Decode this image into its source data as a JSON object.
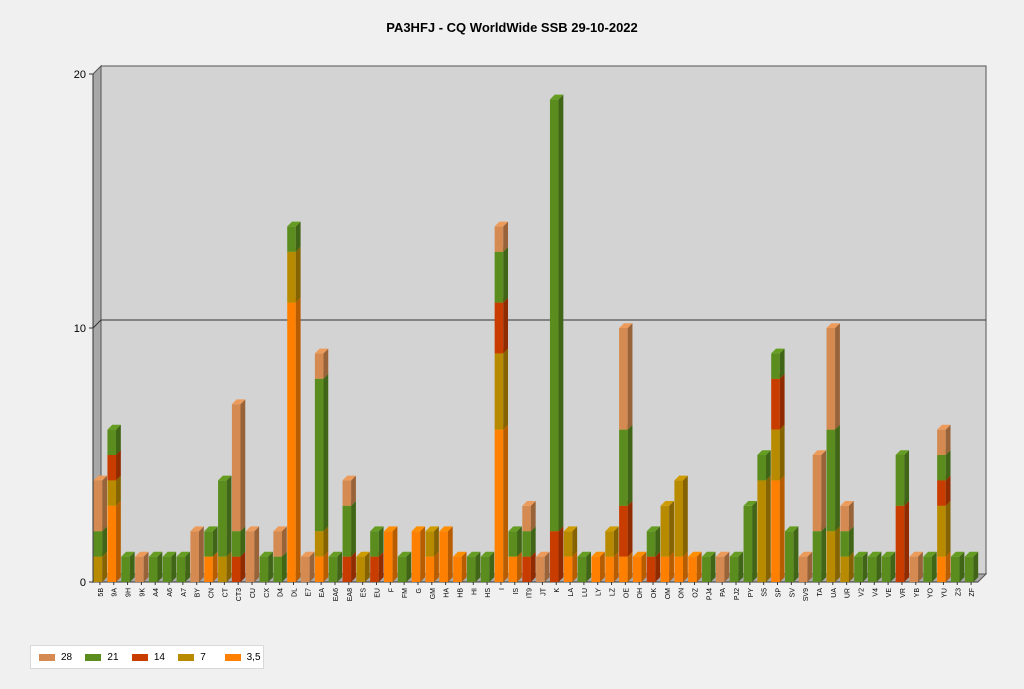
{
  "chart_data": {
    "type": "bar",
    "stacked": true,
    "three_d": true,
    "title": "PA3HFJ - CQ WorldWide SSB 29-10-2022",
    "xlabel": "",
    "ylabel": "",
    "ylim": [
      0,
      20
    ],
    "yticks": [
      "0",
      "10",
      "20"
    ],
    "grid": "horizontal at 10",
    "legend_position": "bottom-left",
    "categories": [
      "5B",
      "9A",
      "9H",
      "9K",
      "A4",
      "A6",
      "A7",
      "BY",
      "CN",
      "CT",
      "CT3",
      "CU",
      "CX",
      "D4",
      "DL",
      "E7",
      "EA",
      "EA6",
      "EA8",
      "ES",
      "EU",
      "F",
      "FM",
      "G",
      "GM",
      "HA",
      "HB",
      "HI",
      "HS",
      "I",
      "IS",
      "IT9",
      "JT",
      "K",
      "LA",
      "LU",
      "LY",
      "LZ",
      "OE",
      "OH",
      "OK",
      "OM",
      "ON",
      "OZ",
      "PJ4",
      "PA",
      "PJ2",
      "PY",
      "S5",
      "SP",
      "SV",
      "SV9",
      "TA",
      "UA",
      "UR",
      "V2",
      "V4",
      "VE",
      "VR",
      "YB",
      "YO",
      "YU",
      "Z3",
      "ZF"
    ],
    "series": [
      {
        "name": "3,5",
        "color": "#ff8000",
        "values": [
          0,
          3,
          0,
          0,
          0,
          0,
          0,
          0,
          1,
          0,
          0,
          0,
          0,
          0,
          11,
          0,
          1,
          0,
          0,
          0,
          0,
          2,
          0,
          2,
          1,
          2,
          1,
          0,
          0,
          6,
          1,
          0,
          0,
          0,
          1,
          0,
          1,
          1,
          1,
          1,
          0,
          1,
          1,
          1,
          0,
          0,
          0,
          0,
          0,
          4,
          0,
          0,
          0,
          0,
          0,
          0,
          0,
          0,
          0,
          0,
          0,
          1,
          0,
          0
        ]
      },
      {
        "name": "7",
        "color": "#b88a00",
        "values": [
          1,
          1,
          0,
          0,
          0,
          0,
          0,
          0,
          0,
          1,
          0,
          0,
          0,
          0,
          2,
          0,
          1,
          0,
          0,
          1,
          0,
          0,
          0,
          0,
          1,
          0,
          0,
          0,
          0,
          3,
          0,
          0,
          0,
          0,
          1,
          0,
          0,
          1,
          0,
          0,
          0,
          2,
          3,
          0,
          0,
          0,
          0,
          0,
          4,
          2,
          0,
          0,
          0,
          2,
          1,
          0,
          0,
          0,
          0,
          0,
          0,
          2,
          0,
          0
        ]
      },
      {
        "name": "14",
        "color": "#c83c00",
        "values": [
          0,
          1,
          0,
          0,
          0,
          0,
          0,
          0,
          0,
          0,
          1,
          0,
          0,
          0,
          0,
          0,
          0,
          0,
          1,
          0,
          1,
          0,
          0,
          0,
          0,
          0,
          0,
          0,
          0,
          2,
          0,
          1,
          0,
          2,
          0,
          0,
          0,
          0,
          2,
          0,
          1,
          0,
          0,
          0,
          0,
          0,
          0,
          0,
          0,
          2,
          0,
          0,
          0,
          0,
          0,
          0,
          0,
          0,
          3,
          0,
          0,
          1,
          0,
          0
        ]
      },
      {
        "name": "21",
        "color": "#5a8c1e",
        "values": [
          1,
          1,
          1,
          0,
          1,
          1,
          1,
          0,
          1,
          3,
          1,
          0,
          1,
          1,
          1,
          0,
          6,
          1,
          2,
          0,
          1,
          0,
          1,
          0,
          0,
          0,
          0,
          1,
          1,
          2,
          1,
          1,
          0,
          17,
          0,
          1,
          0,
          0,
          3,
          0,
          1,
          0,
          0,
          0,
          1,
          0,
          1,
          3,
          1,
          1,
          2,
          0,
          2,
          4,
          1,
          1,
          1,
          1,
          2,
          0,
          1,
          1,
          1,
          1
        ]
      },
      {
        "name": "28",
        "color": "#d48a50",
        "values": [
          2,
          0,
          0,
          1,
          0,
          0,
          0,
          2,
          0,
          0,
          5,
          2,
          0,
          1,
          0,
          1,
          1,
          0,
          1,
          0,
          0,
          0,
          0,
          0,
          0,
          0,
          0,
          0,
          0,
          1,
          0,
          1,
          1,
          0,
          0,
          0,
          0,
          0,
          4,
          0,
          0,
          0,
          0,
          0,
          0,
          1,
          0,
          0,
          0,
          0,
          0,
          1,
          3,
          4,
          1,
          0,
          0,
          0,
          0,
          1,
          0,
          1,
          0,
          0
        ]
      }
    ],
    "legend_order": [
      "28",
      "21",
      "14",
      "7",
      "3,5"
    ]
  }
}
